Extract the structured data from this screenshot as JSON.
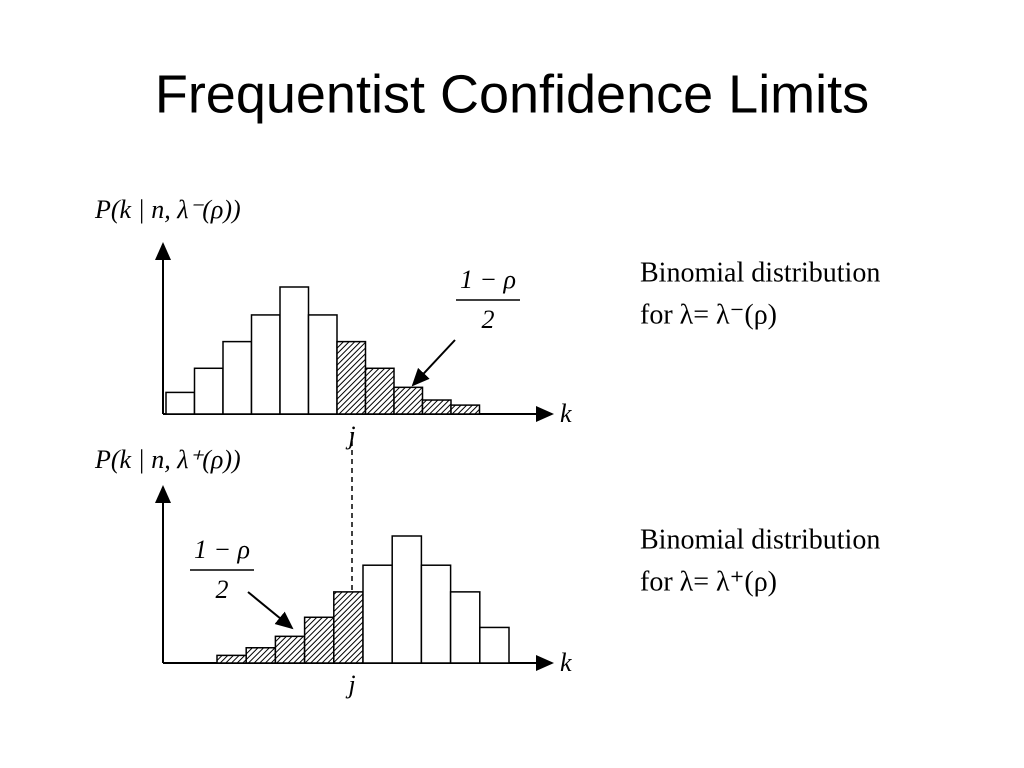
{
  "title": "Frequentist Confidence Limits",
  "chart_data": [
    {
      "type": "bar",
      "y_label": "P(k | n, λ⁻(ρ))",
      "x_label": "k",
      "marker_label": "j",
      "annotation": {
        "numerator": "1 − ρ",
        "denominator": "2"
      },
      "caption": [
        "Binomial distribution",
        "for λ= λ⁻(ρ)"
      ],
      "categories": [
        null,
        null,
        null,
        null,
        null,
        null,
        null,
        null,
        null,
        null,
        null
      ],
      "values": [
        17,
        36,
        57,
        78,
        100,
        78,
        57,
        36,
        21,
        11,
        7
      ],
      "styles": [
        "open",
        "open",
        "open",
        "open",
        "open",
        "open",
        "hatched",
        "hatched",
        "hatched",
        "hatched",
        "hatched"
      ]
    },
    {
      "type": "bar",
      "y_label": "P(k | n, λ⁺(ρ))",
      "x_label": "k",
      "marker_label": "j",
      "annotation": {
        "numerator": "1 − ρ",
        "denominator": "2"
      },
      "caption": [
        "Binomial distribution",
        "for λ= λ⁺(ρ)"
      ],
      "categories": [
        null,
        null,
        null,
        null,
        null,
        null,
        null,
        null,
        null,
        null
      ],
      "values": [
        6,
        12,
        21,
        36,
        56,
        77,
        100,
        77,
        56,
        28
      ],
      "styles": [
        "hatched",
        "hatched",
        "hatched",
        "hatched",
        "hatched",
        "open",
        "open",
        "open",
        "open",
        "open"
      ]
    }
  ]
}
